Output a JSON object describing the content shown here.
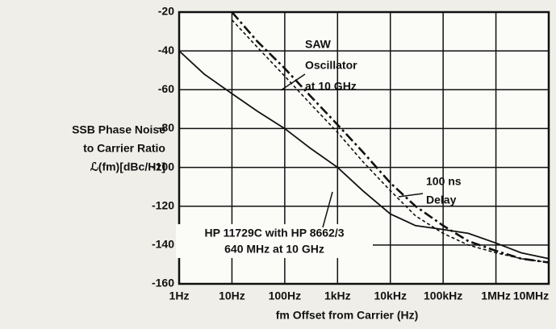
{
  "chart_data": {
    "type": "line",
    "xlabel": "fm Offset from Carrier (Hz)",
    "ylabel": [
      "SSB Phase Noise",
      "to Carrier Ratio",
      "ℒ(fm)[dBc/Hz]"
    ],
    "x": [
      1,
      3,
      10,
      30,
      100,
      300,
      1000,
      3000,
      10000,
      30000,
      100000,
      300000,
      1000000,
      3000000,
      10000000
    ],
    "xscale": "log",
    "xlim": [
      1,
      10000000
    ],
    "xticks": [
      {
        "value": 1,
        "label": "1Hz"
      },
      {
        "value": 10,
        "label": "10Hz"
      },
      {
        "value": 100,
        "label": "100Hz"
      },
      {
        "value": 1000,
        "label": "1kHz"
      },
      {
        "value": 10000,
        "label": "10kHz"
      },
      {
        "value": 100000,
        "label": "100kHz"
      },
      {
        "value": 1000000,
        "label": "1MHz"
      },
      {
        "value": 10000000,
        "label": "10MHz"
      }
    ],
    "ylim": [
      -160,
      -20
    ],
    "yticks": [
      -20,
      -40,
      -60,
      -80,
      -100,
      -120,
      -140,
      -160
    ],
    "grid": true,
    "series": [
      {
        "name": [
          "HP 11729C with HP 8662/3",
          "640 MHz at 10 GHz"
        ],
        "color": "#111111",
        "style": "solid",
        "values": [
          -40,
          -52,
          -62,
          -71,
          -80,
          -90,
          -100,
          -112,
          -124,
          -130,
          -132,
          -134,
          -139,
          -144,
          -147
        ]
      },
      {
        "name": [
          "SAW",
          "Oscillator",
          "at 10 GHz"
        ],
        "color": "#111111",
        "style": "dashdot",
        "values": [
          null,
          null,
          -20,
          -35,
          -49,
          -63,
          -78,
          -92,
          -108,
          -120,
          -130,
          -138,
          -143,
          -147,
          -149
        ]
      },
      {
        "name": [
          "100 ns",
          "Delay"
        ],
        "color": "#111111",
        "style": "dashed",
        "values": [
          null,
          null,
          -24,
          -38,
          -53,
          -67,
          -82,
          -97,
          -112,
          -125,
          -134,
          -140,
          -144,
          -147,
          -149
        ]
      }
    ]
  }
}
